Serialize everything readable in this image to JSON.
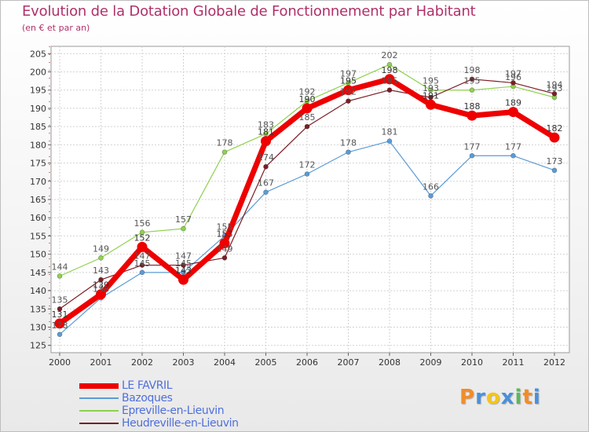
{
  "chart_data": {
    "type": "line",
    "title": "Evolution de la Dotation Globale de Fonctionnement par Habitant",
    "subtitle": "(en € et par an)",
    "xlabel": "",
    "ylabel": "",
    "categories": [
      "2000",
      "2001",
      "2002",
      "2003",
      "2004",
      "2005",
      "2006",
      "2007",
      "2008",
      "2009",
      "2010",
      "2011",
      "2012"
    ],
    "ylim": [
      123,
      207
    ],
    "yticks": [
      125,
      130,
      135,
      140,
      145,
      150,
      155,
      160,
      165,
      170,
      175,
      180,
      185,
      190,
      195,
      200,
      205
    ],
    "grid": true,
    "legend_position": "bottom-left",
    "series": [
      {
        "name": "LE FAVRIL",
        "color": "#ee0000",
        "values": [
          131,
          139,
          152,
          143,
          153,
          181,
          190,
          195,
          198,
          191,
          188,
          189,
          182
        ]
      },
      {
        "name": "Bazoques",
        "color": "#5b9bd5",
        "values": [
          128,
          138,
          145,
          145,
          155,
          167,
          172,
          178,
          181,
          166,
          177,
          177,
          173
        ]
      },
      {
        "name": "Epreville-en-Lieuvin",
        "color": "#8fd14f",
        "values": [
          144,
          149,
          156,
          157,
          178,
          183,
          192,
          197,
          202,
          195,
          195,
          196,
          193
        ]
      },
      {
        "name": "Heudreville-en-Lieuvin",
        "color": "#7b1e25",
        "values": [
          135,
          143,
          147,
          147,
          149,
          174,
          185,
          192,
          195,
          193,
          198,
          197,
          194
        ]
      }
    ]
  },
  "logo": {
    "letters": [
      "P",
      "r",
      "o",
      "x",
      "i",
      "t",
      "i"
    ],
    "colors": [
      "#f28c28",
      "#4a90d9",
      "#f5c518",
      "#4a90d9",
      "#5cb85c",
      "#f28c28",
      "#4a90d9"
    ]
  }
}
